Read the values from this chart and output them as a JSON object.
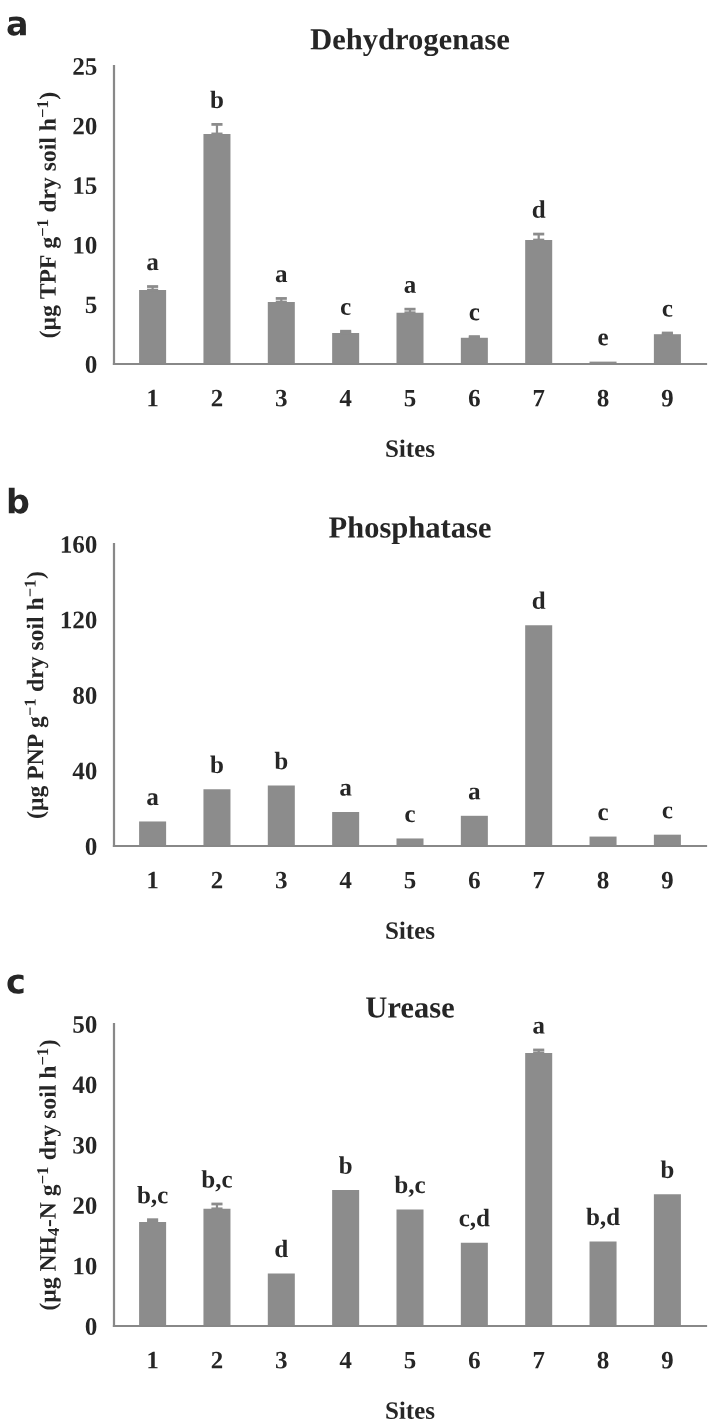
{
  "chart_data": [
    {
      "type": "bar",
      "title": "Dehydrogenase",
      "xlabel": "Sites",
      "ylabel": "(µg TPF g$^{−1}$ dry soil h$^{−1}$)",
      "categories": [
        "1",
        "2",
        "3",
        "4",
        "5",
        "6",
        "7",
        "8",
        "9"
      ],
      "series": [
        {
          "color": "#8c8c8c",
          "values": [
            6.2,
            19.3,
            5.2,
            2.6,
            4.3,
            2.2,
            10.4,
            0.2,
            2.5
          ],
          "errors": [
            0.3,
            0.8,
            0.3,
            0.15,
            0.3,
            0.1,
            0.5,
            null,
            0.1
          ],
          "value_labels": [
            "a",
            "b",
            "a",
            "c",
            "a",
            "c",
            "d",
            "e",
            "c"
          ]
        }
      ],
      "ylim": [
        0,
        25
      ],
      "yticks": [
        0,
        5,
        10,
        15,
        20,
        25
      ],
      "grid": false,
      "legend": false,
      "annotations": [
        "a"
      ]
    },
    {
      "type": "bar",
      "title": "Phosphatase",
      "xlabel": "Sites",
      "ylabel": "(µg PNP g$^{−1}$ dry soil h$^{−1}$)",
      "categories": [
        "1",
        "2",
        "3",
        "4",
        "5",
        "6",
        "7",
        "8",
        "9"
      ],
      "series": [
        {
          "color": "#8c8c8c",
          "values": [
            13,
            30,
            32,
            18,
            4,
            16,
            117,
            5,
            6
          ],
          "value_labels": [
            "a",
            "b",
            "b",
            "a",
            "c",
            "a",
            "d",
            "c",
            "c"
          ]
        }
      ],
      "ylim": [
        0,
        160
      ],
      "yticks": [
        0,
        40,
        80,
        120,
        160
      ],
      "grid": false,
      "legend": false,
      "annotations": [
        "b"
      ]
    },
    {
      "type": "bar",
      "title": "Urease",
      "xlabel": "Sites",
      "ylabel": "(µg NH$_{4}$-N g$^{−1}$ dry soil h$^{−1}$)",
      "categories": [
        "1",
        "2",
        "3",
        "4",
        "5",
        "6",
        "7",
        "8",
        "9"
      ],
      "series": [
        {
          "color": "#8c8c8c",
          "values": [
            17.2,
            19.4,
            8.7,
            22.5,
            19.3,
            13.8,
            45.2,
            14.0,
            21.8
          ],
          "errors": [
            0.4,
            0.8,
            null,
            null,
            null,
            null,
            0.5,
            null,
            null
          ],
          "value_labels": [
            "b,c",
            "b,c",
            "d",
            "b",
            "b,c",
            "c,d",
            "a",
            "b,d",
            "b"
          ]
        }
      ],
      "ylim": [
        0,
        50
      ],
      "yticks": [
        0,
        10,
        20,
        30,
        40,
        50
      ],
      "grid": false,
      "legend": false,
      "annotations": [
        "c"
      ]
    }
  ]
}
